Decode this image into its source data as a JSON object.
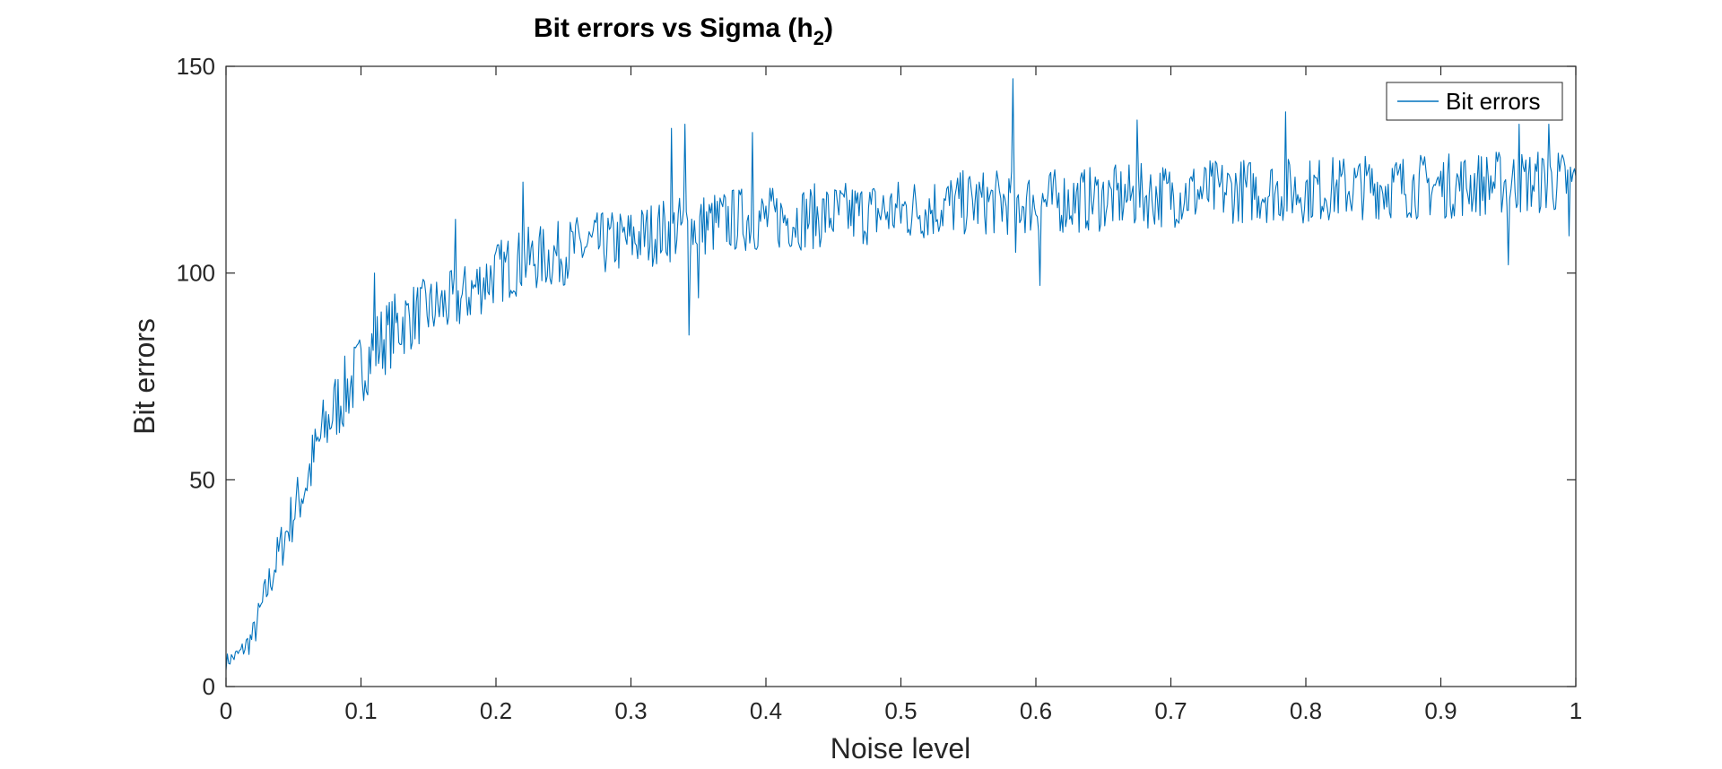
{
  "chart_data": {
    "type": "line",
    "title_main": "Bit errors vs Sigma (h",
    "title_sub": "2",
    "title_close": ")",
    "xlabel": "Noise level",
    "ylabel": "Bit errors",
    "xlim": [
      0,
      1
    ],
    "ylim": [
      0,
      150
    ],
    "xticks": [
      0,
      0.1,
      0.2,
      0.3,
      0.4,
      0.5,
      0.6,
      0.7,
      0.8,
      0.9,
      1
    ],
    "xtick_labels": [
      "0",
      "0.1",
      "0.2",
      "0.3",
      "0.4",
      "0.5",
      "0.6",
      "0.7",
      "0.8",
      "0.9",
      "1"
    ],
    "yticks": [
      0,
      50,
      100,
      150
    ],
    "ytick_labels": [
      "0",
      "50",
      "100",
      "150"
    ],
    "grid": false,
    "legend_position": "top-right",
    "series_color": "#0072BD",
    "series": [
      {
        "name": "Bit errors",
        "x": [
          0,
          0.01,
          0.02,
          0.03,
          0.04,
          0.05,
          0.06,
          0.07,
          0.08,
          0.09,
          0.1,
          0.11,
          0.12,
          0.13,
          0.14,
          0.15,
          0.16,
          0.17,
          0.18,
          0.19,
          0.2,
          0.22,
          0.24,
          0.26,
          0.28,
          0.3,
          0.32,
          0.34,
          0.36,
          0.38,
          0.4,
          0.45,
          0.5,
          0.55,
          0.6,
          0.65,
          0.7,
          0.75,
          0.8,
          0.85,
          0.9,
          0.95,
          1
        ],
        "y": [
          6,
          8,
          12,
          23,
          33,
          42,
          50,
          60,
          67,
          72,
          77,
          82,
          85,
          88,
          90,
          91,
          92,
          93,
          95,
          98,
          100,
          103,
          104,
          106,
          107,
          108,
          110,
          111,
          112,
          113,
          113,
          114,
          115,
          117,
          117,
          118,
          119,
          120,
          120,
          121,
          121,
          122,
          122
        ],
        "noise_amp": [
          2,
          2,
          4,
          5,
          6,
          7,
          8,
          9,
          9,
          9,
          9,
          9,
          9,
          9,
          8,
          8,
          8,
          8,
          8,
          8,
          8,
          8,
          8,
          8,
          8,
          8,
          8,
          8,
          8,
          8,
          8,
          8,
          8,
          8,
          8,
          8,
          8,
          8,
          8,
          8,
          8,
          8,
          8
        ],
        "peaks": [
          [
            0.11,
            100
          ],
          [
            0.17,
            113
          ],
          [
            0.22,
            122
          ],
          [
            0.33,
            135
          ],
          [
            0.34,
            136
          ],
          [
            0.343,
            85
          ],
          [
            0.35,
            94
          ],
          [
            0.39,
            134
          ],
          [
            0.583,
            147
          ],
          [
            0.585,
            105
          ],
          [
            0.603,
            97
          ],
          [
            0.675,
            137
          ],
          [
            0.785,
            139
          ],
          [
            0.95,
            102
          ],
          [
            0.958,
            136
          ],
          [
            0.98,
            136
          ],
          [
            0.995,
            109
          ]
        ]
      }
    ]
  }
}
